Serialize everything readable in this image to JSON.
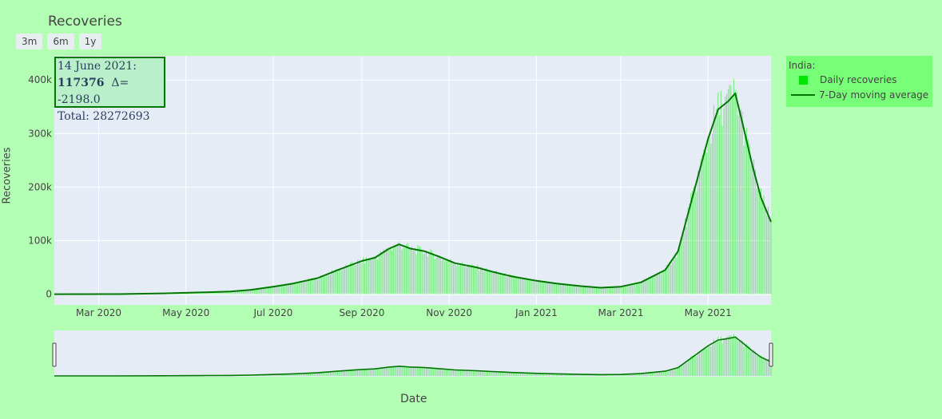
{
  "title": "Recoveries",
  "range_buttons": [
    "3m",
    "6m",
    "1y"
  ],
  "legend": {
    "title": "India:",
    "items": [
      "Daily recoveries",
      "7-Day moving average"
    ]
  },
  "annotation": {
    "date": "14 June 2021:",
    "value": "117376",
    "delta": "Δ= -2198.0",
    "total": "Total: 28272693"
  },
  "colors": {
    "bars": "#00e600",
    "ma_line": "#007700",
    "plot_bg": "#e5ecf6",
    "page_bg": "#b3ffb3"
  },
  "chart_data": {
    "type": "bar",
    "title": "Recoveries",
    "xlabel": "Date",
    "ylabel": "Recoveries",
    "x_ticks": [
      "Mar 2020",
      "May 2020",
      "Jul 2020",
      "Sep 2020",
      "Nov 2020",
      "Jan 2021",
      "Mar 2021",
      "May 2021"
    ],
    "y_ticks": [
      "0",
      "100k",
      "200k",
      "300k",
      "400k"
    ],
    "ylim": [
      -20000,
      445000
    ],
    "xlim": [
      "2020-01-30",
      "2021-06-14"
    ],
    "grid": true,
    "legend_position": "right",
    "series": [
      {
        "name": "Daily recoveries",
        "type": "bar"
      },
      {
        "name": "7-Day moving average",
        "type": "line",
        "points": [
          [
            "2020-01-30",
            0
          ],
          [
            "2020-03-15",
            100
          ],
          [
            "2020-04-15",
            1500
          ],
          [
            "2020-05-15",
            3500
          ],
          [
            "2020-06-01",
            5000
          ],
          [
            "2020-06-15",
            8000
          ],
          [
            "2020-07-01",
            14000
          ],
          [
            "2020-07-15",
            20000
          ],
          [
            "2020-08-01",
            30000
          ],
          [
            "2020-08-15",
            45000
          ],
          [
            "2020-09-01",
            62000
          ],
          [
            "2020-09-10",
            68000
          ],
          [
            "2020-09-20",
            85000
          ],
          [
            "2020-09-27",
            93000
          ],
          [
            "2020-10-05",
            85000
          ],
          [
            "2020-10-15",
            80000
          ],
          [
            "2020-10-25",
            70000
          ],
          [
            "2020-11-05",
            58000
          ],
          [
            "2020-11-20",
            50000
          ],
          [
            "2020-12-01",
            42000
          ],
          [
            "2020-12-15",
            33000
          ],
          [
            "2021-01-01",
            25000
          ],
          [
            "2021-01-15",
            20000
          ],
          [
            "2021-02-01",
            15000
          ],
          [
            "2021-02-15",
            12000
          ],
          [
            "2021-03-01",
            14000
          ],
          [
            "2021-03-15",
            22000
          ],
          [
            "2021-04-01",
            45000
          ],
          [
            "2021-04-10",
            80000
          ],
          [
            "2021-04-20",
            180000
          ],
          [
            "2021-05-01",
            290000
          ],
          [
            "2021-05-08",
            345000
          ],
          [
            "2021-05-15",
            360000
          ],
          [
            "2021-05-20",
            375000
          ],
          [
            "2021-05-25",
            320000
          ],
          [
            "2021-06-01",
            240000
          ],
          [
            "2021-06-07",
            180000
          ],
          [
            "2021-06-14",
            135000
          ]
        ]
      }
    ]
  }
}
